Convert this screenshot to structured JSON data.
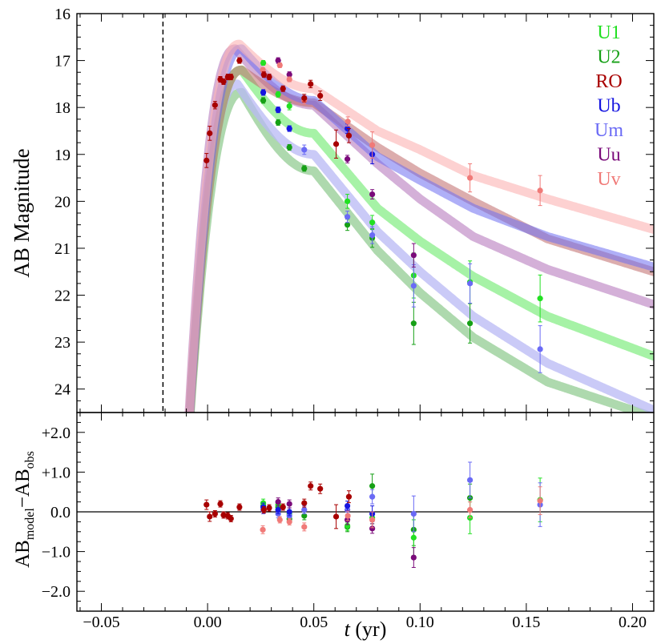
{
  "chart_data": {
    "type": "scatter",
    "title": "",
    "xlabel": "t (yr)",
    "xlabel_var": "t",
    "xlabel_unit": " (yr)",
    "xlim": [
      -0.0615,
      0.21
    ],
    "x_ticks": [
      -0.05,
      0.0,
      0.05,
      0.1,
      0.15,
      0.2
    ],
    "x_tick_labels": [
      "−0.05",
      "0.00",
      "0.05",
      "0.10",
      "0.15",
      "0.20"
    ],
    "explosion_time": -0.021,
    "top_panel": {
      "ylabel": "AB Magnitude",
      "ylim": [
        24.5,
        16
      ],
      "y_ticks": [
        16,
        17,
        18,
        19,
        20,
        21,
        22,
        23,
        24
      ],
      "y_tick_labels": [
        "16",
        "17",
        "18",
        "19",
        "20",
        "21",
        "22",
        "23",
        "24"
      ]
    },
    "bottom_panel": {
      "ylabel_main": "AB",
      "ylabel_sub1": "model",
      "ylabel_mid": "−AB",
      "ylabel_sub2": "obs",
      "ylim": [
        -2.5,
        2.5
      ],
      "y_ticks": [
        2,
        1,
        0,
        -1,
        -2
      ],
      "y_tick_labels": [
        "+2.0",
        "+1.0",
        "0.0",
        "−1.0",
        "−2.0"
      ]
    },
    "legend": [
      {
        "name": "U1",
        "color": "#22e022"
      },
      {
        "name": "U2",
        "color": "#16a016"
      },
      {
        "name": "RO",
        "color": "#a80000"
      },
      {
        "name": "Ub",
        "color": "#1616e0"
      },
      {
        "name": "Um",
        "color": "#6a6af5"
      },
      {
        "name": "Uu",
        "color": "#7a0a7a"
      },
      {
        "name": "Uv",
        "color": "#f07a78"
      }
    ],
    "series": [
      {
        "name": "RO",
        "color": "#a80000",
        "band": "#c06a6a",
        "band_opacity": 0.55,
        "curve": {
          "peak": 17.2,
          "tp": 0.016,
          "tail": [
            [
              0.05,
              17.9
            ],
            [
              0.08,
              18.85
            ],
            [
              0.1,
              19.4
            ],
            [
              0.125,
              20.0
            ],
            [
              0.16,
              20.8
            ],
            [
              0.21,
              21.5
            ]
          ]
        },
        "points": [
          {
            "x": -0.0005,
            "y": 19.13,
            "e": 0.15,
            "r": 0.18,
            "re": 0.12
          },
          {
            "x": 0.001,
            "y": 18.55,
            "e": 0.15,
            "r": -0.12,
            "re": 0.12
          },
          {
            "x": 0.0035,
            "y": 17.95,
            "e": 0.08,
            "r": -0.05,
            "re": 0.08
          },
          {
            "x": 0.006,
            "y": 17.4,
            "e": 0.06,
            "r": 0.2,
            "re": 0.08
          },
          {
            "x": 0.0075,
            "y": 17.45,
            "e": 0.06,
            "r": -0.08,
            "re": 0.08
          },
          {
            "x": 0.0095,
            "y": 17.35,
            "e": 0.06,
            "r": -0.1,
            "re": 0.08
          },
          {
            "x": 0.011,
            "y": 17.35,
            "e": 0.06,
            "r": -0.17,
            "re": 0.08
          },
          {
            "x": 0.015,
            "y": 17.0,
            "e": 0.06,
            "r": 0.12,
            "re": 0.08
          },
          {
            "x": 0.0265,
            "y": 17.3,
            "e": 0.06,
            "r": 0.05,
            "re": 0.08
          },
          {
            "x": 0.029,
            "y": 17.35,
            "e": 0.06,
            "r": 0.1,
            "re": 0.08
          },
          {
            "x": 0.0355,
            "y": 17.6,
            "e": 0.06,
            "r": 0.12,
            "re": 0.08
          },
          {
            "x": 0.0455,
            "y": 17.8,
            "e": 0.08,
            "r": 0.22,
            "re": 0.1
          },
          {
            "x": 0.0485,
            "y": 17.5,
            "e": 0.08,
            "r": 0.65,
            "re": 0.1
          },
          {
            "x": 0.053,
            "y": 17.75,
            "e": 0.1,
            "r": 0.58,
            "re": 0.12
          },
          {
            "x": 0.0605,
            "y": 18.78,
            "e": 0.3,
            "r": -0.12,
            "re": 0.3
          },
          {
            "x": 0.0665,
            "y": 18.6,
            "e": 0.15,
            "r": 0.38,
            "re": 0.15
          }
        ]
      },
      {
        "name": "Uv",
        "color": "#f07a78",
        "band": "#fbb3b3",
        "band_opacity": 0.6,
        "curve": {
          "peak": 16.65,
          "tp": 0.015,
          "tail": [
            [
              0.05,
              17.6
            ],
            [
              0.08,
              18.5
            ],
            [
              0.1,
              18.9
            ],
            [
              0.125,
              19.45
            ],
            [
              0.16,
              19.95
            ],
            [
              0.21,
              20.6
            ]
          ]
        },
        "points": [
          {
            "x": 0.026,
            "y": 17.2,
            "e": 0.05,
            "r": -0.45,
            "re": 0.1
          },
          {
            "x": 0.034,
            "y": 17.1,
            "e": 0.05,
            "r": -0.2,
            "re": 0.08
          },
          {
            "x": 0.0385,
            "y": 17.4,
            "e": 0.05,
            "r": -0.25,
            "re": 0.08
          },
          {
            "x": 0.0455,
            "y": 17.85,
            "e": 0.08,
            "r": -0.38,
            "re": 0.1
          },
          {
            "x": 0.066,
            "y": 18.3,
            "e": 0.1,
            "r": -0.1,
            "re": 0.12
          },
          {
            "x": 0.0775,
            "y": 18.8,
            "e": 0.28,
            "r": -0.2,
            "re": 0.2
          },
          {
            "x": 0.1235,
            "y": 19.5,
            "e": 0.3,
            "r": 0.05,
            "re": 0.2
          },
          {
            "x": 0.1565,
            "y": 19.77,
            "e": 0.32,
            "r": 0.28,
            "re": 0.35
          }
        ]
      },
      {
        "name": "Ub",
        "color": "#1616e0",
        "band": "#6e6ef0",
        "band_opacity": 0.55,
        "curve": {
          "peak": 16.75,
          "tp": 0.016,
          "tail": [
            [
              0.05,
              17.85
            ],
            [
              0.08,
              19.05
            ],
            [
              0.1,
              19.55
            ],
            [
              0.125,
              20.15
            ],
            [
              0.16,
              20.75
            ],
            [
              0.21,
              21.4
            ]
          ]
        },
        "points": [
          {
            "x": 0.0262,
            "y": 17.68,
            "e": 0.06,
            "r": 0.12,
            "re": 0.1
          },
          {
            "x": 0.0332,
            "y": 18.05,
            "e": 0.06,
            "r": 0.05,
            "re": 0.1
          },
          {
            "x": 0.0385,
            "y": 18.45,
            "e": 0.06,
            "r": 0.0,
            "re": 0.1
          },
          {
            "x": 0.0658,
            "y": 18.45,
            "e": 0.1,
            "r": 0.15,
            "re": 0.12
          },
          {
            "x": 0.0775,
            "y": 19.0,
            "e": 0.2,
            "r": -0.05,
            "re": 0.2
          }
        ]
      },
      {
        "name": "Uu",
        "color": "#7a0a7a",
        "band": "#b070b8",
        "band_opacity": 0.55,
        "curve": {
          "peak": 16.75,
          "tp": 0.013,
          "tail": [
            [
              0.05,
              17.95
            ],
            [
              0.08,
              19.2
            ],
            [
              0.1,
              19.95
            ],
            [
              0.125,
              20.75
            ],
            [
              0.16,
              21.45
            ],
            [
              0.21,
              22.2
            ]
          ]
        },
        "points": [
          {
            "x": 0.0332,
            "y": 17.0,
            "e": 0.06,
            "r": 0.25,
            "re": 0.1
          },
          {
            "x": 0.0385,
            "y": 17.3,
            "e": 0.06,
            "r": 0.2,
            "re": 0.1
          },
          {
            "x": 0.0658,
            "y": 19.1,
            "e": 0.08,
            "r": -0.2,
            "re": 0.12
          },
          {
            "x": 0.0775,
            "y": 19.85,
            "e": 0.1,
            "r": -0.42,
            "re": 0.12
          },
          {
            "x": 0.097,
            "y": 21.15,
            "e": 0.25,
            "r": -1.15,
            "re": 0.25
          }
        ]
      },
      {
        "name": "Um",
        "color": "#6a6af5",
        "band": "#b8b8f4",
        "band_opacity": 0.75,
        "curve": {
          "peak": 17.5,
          "tp": 0.014,
          "tail": [
            [
              0.05,
              19.0
            ],
            [
              0.08,
              20.65
            ],
            [
              0.1,
              21.5
            ],
            [
              0.125,
              22.45
            ],
            [
              0.16,
              23.45
            ],
            [
              0.21,
              24.45
            ]
          ]
        },
        "points": [
          {
            "x": 0.0262,
            "y": 17.68,
            "e": 0.06,
            "r": 0.05,
            "re": 0.1
          },
          {
            "x": 0.0332,
            "y": 18.05,
            "e": 0.06,
            "r": -0.05,
            "re": 0.1
          },
          {
            "x": 0.0385,
            "y": 18.45,
            "e": 0.06,
            "r": -0.1,
            "re": 0.1
          },
          {
            "x": 0.0455,
            "y": 18.9,
            "e": 0.1,
            "r": 0.05,
            "re": 0.1
          },
          {
            "x": 0.0658,
            "y": 20.33,
            "e": 0.12,
            "r": 0.05,
            "re": 0.12
          },
          {
            "x": 0.0775,
            "y": 20.72,
            "e": 0.18,
            "r": 0.38,
            "re": 0.18
          },
          {
            "x": 0.097,
            "y": 21.8,
            "e": 0.45,
            "r": -0.05,
            "re": 0.45
          },
          {
            "x": 0.1235,
            "y": 21.75,
            "e": 0.42,
            "r": 0.8,
            "re": 0.45
          },
          {
            "x": 0.1565,
            "y": 23.15,
            "e": 0.5,
            "r": 0.18,
            "re": 0.55
          }
        ]
      },
      {
        "name": "U1",
        "color": "#22e022",
        "band": "#88ee88",
        "band_opacity": 0.75,
        "curve": {
          "peak": 17.2,
          "tp": 0.016,
          "tail": [
            [
              0.05,
              18.55
            ],
            [
              0.08,
              20.15
            ],
            [
              0.1,
              20.85
            ],
            [
              0.125,
              21.6
            ],
            [
              0.16,
              22.45
            ],
            [
              0.21,
              23.3
            ]
          ]
        },
        "points": [
          {
            "x": 0.0262,
            "y": 17.05,
            "e": 0.05,
            "r": 0.22,
            "re": 0.1
          },
          {
            "x": 0.0332,
            "y": 17.72,
            "e": 0.06,
            "r": 0.18,
            "re": 0.1
          },
          {
            "x": 0.0385,
            "y": 17.97,
            "e": 0.08,
            "r": -0.05,
            "re": 0.1
          },
          {
            "x": 0.0658,
            "y": 20.0,
            "e": 0.15,
            "r": -0.35,
            "re": 0.12
          },
          {
            "x": 0.0775,
            "y": 20.45,
            "e": 0.15,
            "r": -0.15,
            "re": 0.15
          },
          {
            "x": 0.097,
            "y": 21.58,
            "e": 0.48,
            "r": -0.65,
            "re": 0.45
          },
          {
            "x": 0.1235,
            "y": 21.72,
            "e": 0.45,
            "r": -0.15,
            "re": 0.4
          },
          {
            "x": 0.1565,
            "y": 22.07,
            "e": 0.5,
            "r": 0.3,
            "re": 0.55
          }
        ]
      },
      {
        "name": "U2",
        "color": "#16a016",
        "band": "#78c078",
        "band_opacity": 0.6,
        "curve": {
          "peak": 17.68,
          "tp": 0.016,
          "tail": [
            [
              0.05,
              19.35
            ],
            [
              0.08,
              21.05
            ],
            [
              0.1,
              21.95
            ],
            [
              0.125,
              22.9
            ],
            [
              0.16,
              23.85
            ],
            [
              0.21,
              24.6
            ]
          ]
        },
        "points": [
          {
            "x": 0.0262,
            "y": 17.85,
            "e": 0.06,
            "r": 0.15,
            "re": 0.1
          },
          {
            "x": 0.0332,
            "y": 18.32,
            "e": 0.06,
            "r": 0.12,
            "re": 0.1
          },
          {
            "x": 0.0385,
            "y": 18.85,
            "e": 0.06,
            "r": -0.18,
            "re": 0.1
          },
          {
            "x": 0.0455,
            "y": 19.3,
            "e": 0.06,
            "r": -0.1,
            "re": 0.1
          },
          {
            "x": 0.0658,
            "y": 20.5,
            "e": 0.12,
            "r": -0.38,
            "re": 0.12
          },
          {
            "x": 0.0775,
            "y": 20.78,
            "e": 0.2,
            "r": 0.65,
            "re": 0.3
          },
          {
            "x": 0.097,
            "y": 22.6,
            "e": 0.45,
            "r": -0.45,
            "re": 0.4
          },
          {
            "x": 0.1235,
            "y": 22.6,
            "e": 0.42,
            "r": 0.35,
            "re": 0.35
          }
        ]
      }
    ]
  }
}
